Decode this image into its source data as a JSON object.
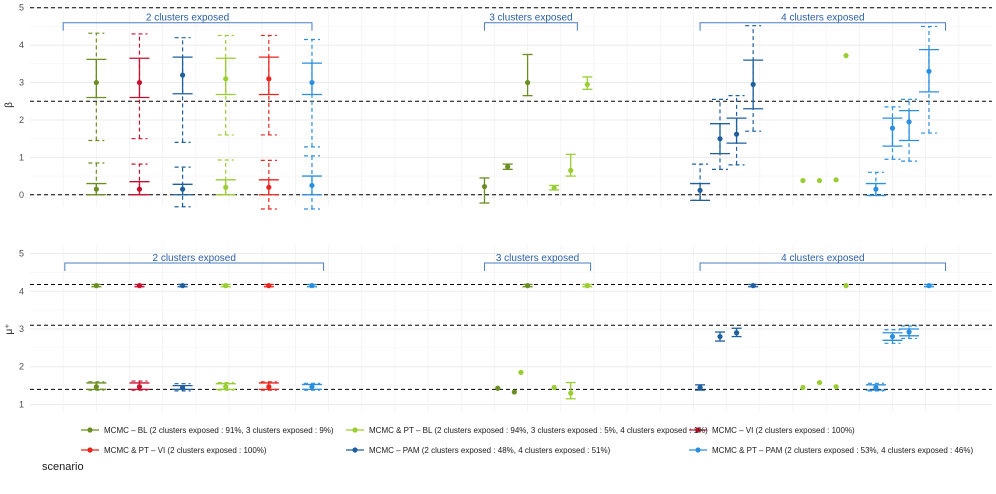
{
  "colors": {
    "MCMC_BL": "#6b8e23",
    "MCMC_VI": "#c8102e",
    "MCMC_PAM": "#1f5f9e",
    "MCMC_PT_BL": "#9acd32",
    "MCMC_PT_VI": "#e8251f",
    "MCMC_PT_PAM": "#2b8fe0"
  },
  "chart_data": [
    {
      "type": "errorbar",
      "ylabel": "β",
      "ylim": [
        -0.3,
        5.1
      ],
      "yticks": [
        0,
        1,
        2,
        3,
        4,
        5
      ],
      "xlim": [
        0,
        29
      ],
      "hlines": [
        0,
        2.5,
        5
      ],
      "brackets": [
        {
          "label": "2 clusters exposed",
          "x0": 1,
          "x1": 8.5,
          "y": 4.6
        },
        {
          "label": "3 clusters exposed",
          "x0": 13.7,
          "x1": 16.5,
          "y": 4.6
        },
        {
          "label": "4 clusters exposed",
          "x0": 20.2,
          "x1": 27.6,
          "y": 4.6
        }
      ],
      "points": [
        {
          "s": "MCMC_BL",
          "x": 2,
          "y": 0.15,
          "lo": 0.0,
          "hi": 0.3,
          "olo": 0.0,
          "ohi": 0.85
        },
        {
          "s": "MCMC_BL",
          "x": 2,
          "y": 3.0,
          "lo": 2.6,
          "hi": 3.62,
          "olo": 1.45,
          "ohi": 4.32
        },
        {
          "s": "MCMC_VI",
          "x": 3.3,
          "y": 0.15,
          "lo": 0.0,
          "hi": 0.35,
          "olo": 0.0,
          "ohi": 0.82
        },
        {
          "s": "MCMC_VI",
          "x": 3.3,
          "y": 3.0,
          "lo": 2.6,
          "hi": 3.65,
          "olo": 1.5,
          "ohi": 4.3
        },
        {
          "s": "MCMC_PAM",
          "x": 4.6,
          "y": 0.15,
          "lo": 0.0,
          "hi": 0.28,
          "olo": -0.32,
          "ohi": 0.74
        },
        {
          "s": "MCMC_PAM",
          "x": 4.6,
          "y": 3.2,
          "lo": 2.7,
          "hi": 3.68,
          "olo": 1.4,
          "ohi": 4.2
        },
        {
          "s": "MCMC_PT_BL",
          "x": 5.9,
          "y": 0.2,
          "lo": 0.0,
          "hi": 0.4,
          "olo": 0.0,
          "ohi": 0.93
        },
        {
          "s": "MCMC_PT_BL",
          "x": 5.9,
          "y": 3.1,
          "lo": 2.68,
          "hi": 3.65,
          "olo": 1.6,
          "ohi": 4.26
        },
        {
          "s": "MCMC_PT_VI",
          "x": 7.2,
          "y": 0.2,
          "lo": 0.0,
          "hi": 0.4,
          "olo": -0.38,
          "ohi": 0.92
        },
        {
          "s": "MCMC_PT_VI",
          "x": 7.2,
          "y": 3.1,
          "lo": 2.68,
          "hi": 3.68,
          "olo": 1.6,
          "ohi": 4.26
        },
        {
          "s": "MCMC_PT_PAM",
          "x": 8.5,
          "y": 0.25,
          "lo": 0.0,
          "hi": 0.5,
          "olo": -0.38,
          "ohi": 1.04
        },
        {
          "s": "MCMC_PT_PAM",
          "x": 8.5,
          "y": 3.0,
          "lo": 2.68,
          "hi": 3.52,
          "olo": 1.28,
          "ohi": 4.15
        },
        {
          "s": "MCMC_BL",
          "x": 13.7,
          "y": 0.22,
          "lo": -0.22,
          "hi": 0.45
        },
        {
          "s": "MCMC_BL",
          "x": 14.4,
          "y": 0.75,
          "lo": 0.68,
          "hi": 0.82
        },
        {
          "s": "MCMC_BL",
          "x": 15.0,
          "y": 3.0,
          "lo": 2.65,
          "hi": 3.75
        },
        {
          "s": "MCMC_PT_BL",
          "x": 15.8,
          "y": 0.18,
          "lo": 0.13,
          "hi": 0.25
        },
        {
          "s": "MCMC_PT_BL",
          "x": 16.3,
          "y": 0.65,
          "lo": 0.5,
          "hi": 1.08
        },
        {
          "s": "MCMC_PT_BL",
          "x": 16.8,
          "y": 2.95,
          "lo": 2.82,
          "hi": 3.15
        },
        {
          "s": "MCMC_PAM",
          "x": 20.2,
          "y": 0.12,
          "lo": -0.15,
          "hi": 0.3,
          "olo": -0.15,
          "ohi": 0.82
        },
        {
          "s": "MCMC_PAM",
          "x": 20.8,
          "y": 1.5,
          "lo": 1.1,
          "hi": 1.9,
          "olo": 0.68,
          "ohi": 2.55
        },
        {
          "s": "MCMC_PAM",
          "x": 21.3,
          "y": 1.62,
          "lo": 1.38,
          "hi": 2.05,
          "olo": 0.8,
          "ohi": 2.65
        },
        {
          "s": "MCMC_PAM",
          "x": 21.8,
          "y": 2.95,
          "lo": 2.3,
          "hi": 3.6,
          "olo": 1.7,
          "ohi": 4.52
        },
        {
          "s": "MCMC_PT_BL",
          "x": 23.3,
          "y": 0.38
        },
        {
          "s": "MCMC_PT_BL",
          "x": 23.8,
          "y": 0.38
        },
        {
          "s": "MCMC_PT_BL",
          "x": 24.3,
          "y": 0.4
        },
        {
          "s": "MCMC_PT_BL",
          "x": 24.6,
          "y": 3.72
        },
        {
          "s": "MCMC_PT_PAM",
          "x": 25.5,
          "y": 0.15,
          "lo": -0.02,
          "hi": 0.3,
          "olo": -0.02,
          "ohi": 0.6
        },
        {
          "s": "MCMC_PT_PAM",
          "x": 26.0,
          "y": 1.78,
          "lo": 1.3,
          "hi": 2.05,
          "olo": 0.95,
          "ohi": 2.35
        },
        {
          "s": "MCMC_PT_PAM",
          "x": 26.5,
          "y": 1.95,
          "lo": 1.45,
          "hi": 2.25,
          "olo": 0.9,
          "ohi": 2.55
        },
        {
          "s": "MCMC_PT_PAM",
          "x": 27.1,
          "y": 3.3,
          "lo": 2.75,
          "hi": 3.88,
          "olo": 1.65,
          "ohi": 4.5
        }
      ]
    },
    {
      "type": "errorbar",
      "ylabel": "μ⁺",
      "ylim": [
        0.8,
        5.2
      ],
      "yticks": [
        1,
        2,
        3,
        4,
        5
      ],
      "xlim": [
        0,
        29
      ],
      "hlines": [
        1.4,
        3.1,
        4.18
      ],
      "brackets": [
        {
          "label": "2 clusters exposed",
          "x0": 1.05,
          "x1": 8.85,
          "y": 4.75
        },
        {
          "label": "3 clusters exposed",
          "x0": 13.7,
          "x1": 16.9,
          "y": 4.75
        },
        {
          "label": "4 clusters exposed",
          "x0": 20.2,
          "x1": 27.6,
          "y": 4.75
        }
      ],
      "points": [
        {
          "s": "MCMC_BL",
          "x": 2,
          "y": 1.47,
          "lo": 1.4,
          "hi": 1.57,
          "olo": 1.38,
          "ohi": 1.6
        },
        {
          "s": "MCMC_BL",
          "x": 2,
          "y": 4.15,
          "lo": 4.12,
          "hi": 4.18
        },
        {
          "s": "MCMC_VI",
          "x": 3.3,
          "y": 1.47,
          "lo": 1.4,
          "hi": 1.57,
          "olo": 1.38,
          "ohi": 1.62
        },
        {
          "s": "MCMC_VI",
          "x": 3.3,
          "y": 4.15,
          "lo": 4.12,
          "hi": 4.18
        },
        {
          "s": "MCMC_PAM",
          "x": 4.6,
          "y": 1.45,
          "lo": 1.4,
          "hi": 1.5,
          "olo": 1.36,
          "ohi": 1.55
        },
        {
          "s": "MCMC_PAM",
          "x": 4.6,
          "y": 4.15,
          "lo": 4.12,
          "hi": 4.18
        },
        {
          "s": "MCMC_PT_BL",
          "x": 5.9,
          "y": 1.47,
          "lo": 1.4,
          "hi": 1.55,
          "olo": 1.38,
          "ohi": 1.58
        },
        {
          "s": "MCMC_PT_BL",
          "x": 5.9,
          "y": 4.15,
          "lo": 4.12,
          "hi": 4.18
        },
        {
          "s": "MCMC_PT_VI",
          "x": 7.2,
          "y": 1.47,
          "lo": 1.4,
          "hi": 1.57,
          "olo": 1.38,
          "ohi": 1.6
        },
        {
          "s": "MCMC_PT_VI",
          "x": 7.2,
          "y": 4.15,
          "lo": 4.12,
          "hi": 4.18
        },
        {
          "s": "MCMC_PT_PAM",
          "x": 8.5,
          "y": 1.47,
          "lo": 1.4,
          "hi": 1.53,
          "olo": 1.38,
          "ohi": 1.56
        },
        {
          "s": "MCMC_PT_PAM",
          "x": 8.5,
          "y": 4.15,
          "lo": 4.12,
          "hi": 4.18
        },
        {
          "s": "MCMC_BL",
          "x": 14.1,
          "y": 1.43
        },
        {
          "s": "MCMC_BL",
          "x": 14.6,
          "y": 1.33
        },
        {
          "s": "MCMC_PT_BL",
          "x": 14.8,
          "y": 1.85
        },
        {
          "s": "MCMC_BL",
          "x": 15.0,
          "y": 4.15,
          "lo": 4.12,
          "hi": 4.18
        },
        {
          "s": "MCMC_PT_BL",
          "x": 15.8,
          "y": 1.45
        },
        {
          "s": "MCMC_PT_BL",
          "x": 16.3,
          "y": 1.3,
          "lo": 1.15,
          "hi": 1.58
        },
        {
          "s": "MCMC_PT_BL",
          "x": 16.8,
          "y": 4.15,
          "lo": 4.12,
          "hi": 4.18
        },
        {
          "s": "MCMC_PAM",
          "x": 20.2,
          "y": 1.45,
          "lo": 1.38,
          "hi": 1.52
        },
        {
          "s": "MCMC_PAM",
          "x": 20.8,
          "y": 2.8,
          "lo": 2.68,
          "hi": 2.92
        },
        {
          "s": "MCMC_PAM",
          "x": 21.3,
          "y": 2.9,
          "lo": 2.8,
          "hi": 3.02
        },
        {
          "s": "MCMC_PAM",
          "x": 21.8,
          "y": 4.15,
          "lo": 4.12,
          "hi": 4.18
        },
        {
          "s": "MCMC_PT_BL",
          "x": 23.3,
          "y": 1.45
        },
        {
          "s": "MCMC_PT_BL",
          "x": 23.8,
          "y": 1.58
        },
        {
          "s": "MCMC_PT_BL",
          "x": 24.3,
          "y": 1.47
        },
        {
          "s": "MCMC_PT_BL",
          "x": 24.6,
          "y": 4.15
        },
        {
          "s": "MCMC_PT_PAM",
          "x": 25.5,
          "y": 1.45,
          "lo": 1.38,
          "hi": 1.52,
          "olo": 1.36,
          "ohi": 1.56
        },
        {
          "s": "MCMC_PT_PAM",
          "x": 26.0,
          "y": 2.8,
          "lo": 2.7,
          "hi": 2.9,
          "olo": 2.62,
          "ohi": 2.98
        },
        {
          "s": "MCMC_PT_PAM",
          "x": 26.5,
          "y": 2.92,
          "lo": 2.82,
          "hi": 3.0,
          "olo": 2.75,
          "ohi": 3.08
        },
        {
          "s": "MCMC_PT_PAM",
          "x": 27.1,
          "y": 4.15,
          "lo": 4.12,
          "hi": 4.18
        }
      ]
    }
  ],
  "legend": {
    "title": "scenario",
    "items": [
      {
        "key": "MCMC_BL",
        "label": "MCMC – BL (2 clusters exposed : 91%, 3 clusters exposed : 9%)"
      },
      {
        "key": "MCMC_VI",
        "label": "MCMC – VI (2 clusters exposed : 100%)"
      },
      {
        "key": "MCMC_PAM",
        "label": "MCMC – PAM (2 clusters exposed : 48%, 4 clusters exposed : 51%)"
      },
      {
        "key": "MCMC_PT_BL",
        "label": "MCMC & PT – BL (2 clusters exposed : 94%, 3 clusters exposed : 5%, 4 clusters exposed : 1%)"
      },
      {
        "key": "MCMC_PT_VI",
        "label": "MCMC & PT – VI (2 clusters exposed : 100%)"
      },
      {
        "key": "MCMC_PT_PAM",
        "label": "MCMC & PT – PAM (2 clusters exposed : 53%, 4 clusters exposed : 46%)"
      }
    ]
  }
}
